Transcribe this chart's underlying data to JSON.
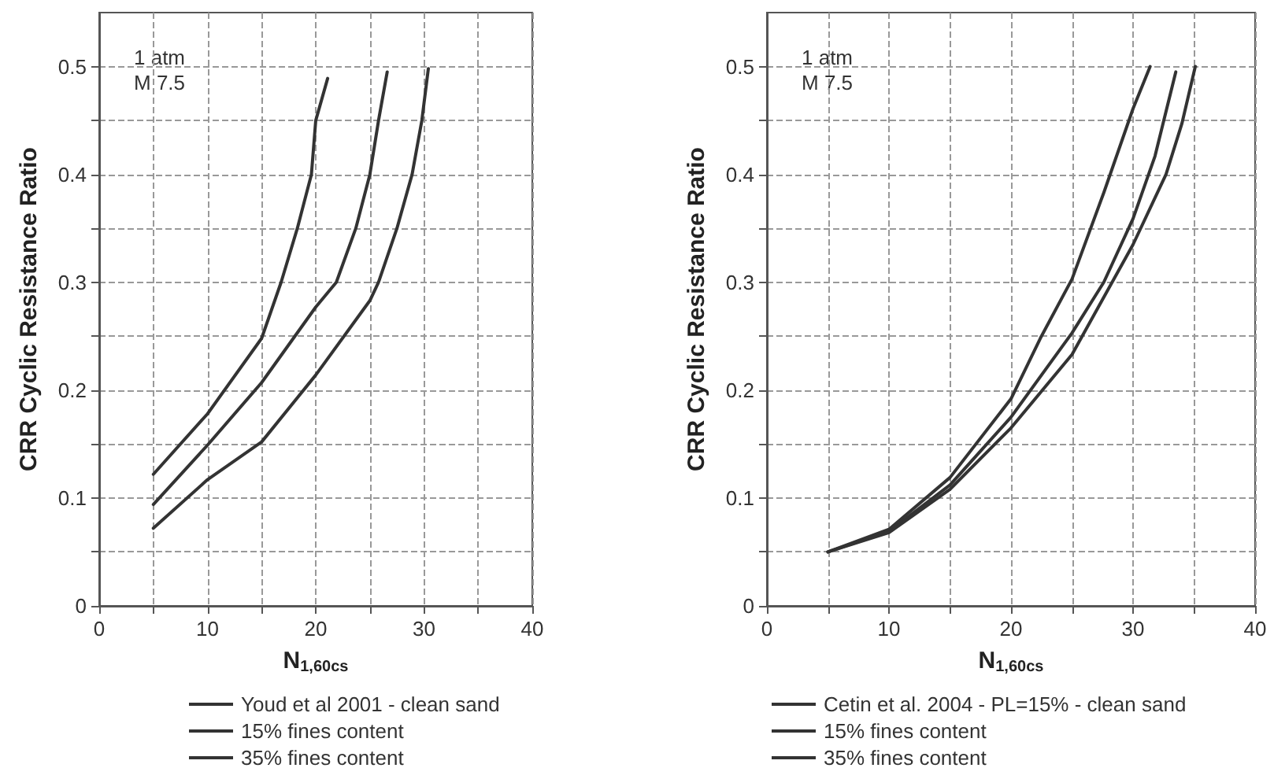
{
  "chart_data": [
    {
      "type": "line",
      "xlabel": "N$_{1,60cs}$",
      "ylabel": "CRR Cyclic Resistance Ratio",
      "annotations": [
        "1 atm",
        "M 7.5"
      ],
      "xlim": [
        0,
        40
      ],
      "ylim": [
        0,
        0.55
      ],
      "xticks": [
        0,
        {
          "value": 5,
          "label": null
        },
        10,
        {
          "value": 15,
          "label": null
        },
        20,
        {
          "value": 25,
          "label": null
        },
        30,
        {
          "value": 35,
          "label": null
        },
        40
      ],
      "yticks": [
        0,
        {
          "value": 0.05,
          "label": null
        },
        0.1,
        {
          "value": 0.15,
          "label": null
        },
        0.2,
        {
          "value": 0.25,
          "label": null
        },
        0.3,
        {
          "value": 0.35,
          "label": null
        },
        0.4,
        {
          "value": 0.45,
          "label": null
        },
        0.5
      ],
      "grid": true,
      "legend": "bottom",
      "line_style": "solid",
      "marker": "none",
      "series": [
        {
          "name": "Youd et al 2001 - clean sand",
          "color": "#333333",
          "x": [
            5,
            10,
            15,
            16.8,
            18.3,
            19.6,
            20,
            21.1
          ],
          "values": [
            0.122,
            0.178,
            0.248,
            0.3,
            0.35,
            0.4,
            0.45,
            0.489
          ]
        },
        {
          "name": "15% fines content",
          "color": "#333333",
          "x": [
            5,
            10,
            15,
            20,
            21.9,
            23.7,
            25,
            25.8,
            26.6
          ],
          "values": [
            0.094,
            0.149,
            0.207,
            0.277,
            0.3,
            0.35,
            0.4,
            0.45,
            0.495
          ]
        },
        {
          "name": "35% fines content",
          "color": "#333333",
          "x": [
            5,
            10,
            15,
            20,
            25,
            25.8,
            27.5,
            28.9,
            29.8,
            30.4
          ],
          "values": [
            0.072,
            0.117,
            0.152,
            0.214,
            0.283,
            0.3,
            0.35,
            0.4,
            0.45,
            0.498
          ]
        }
      ]
    },
    {
      "type": "line",
      "xlabel": "N$_{1,60cs}$",
      "ylabel": "CRR Cyclic Resistance Ratio",
      "annotations": [
        "1 atm",
        "M 7.5"
      ],
      "xlim": [
        0,
        40
      ],
      "ylim": [
        0,
        0.55
      ],
      "xticks": [
        0,
        {
          "value": 5,
          "label": null
        },
        10,
        {
          "value": 15,
          "label": null
        },
        20,
        {
          "value": 25,
          "label": null
        },
        30,
        {
          "value": 35,
          "label": null
        },
        40
      ],
      "yticks": [
        0,
        {
          "value": 0.05,
          "label": null
        },
        0.1,
        {
          "value": 0.15,
          "label": null
        },
        0.2,
        {
          "value": 0.25,
          "label": null
        },
        0.3,
        {
          "value": 0.35,
          "label": null
        },
        0.4,
        {
          "value": 0.45,
          "label": null
        },
        0.5
      ],
      "grid": true,
      "legend": "bottom",
      "line_style": "solid",
      "marker": "none",
      "series": [
        {
          "name": "Cetin et al. 2004 - PL=15% - clean sand",
          "color": "#333333",
          "x": [
            5,
            10,
            15,
            20,
            22.4,
            25,
            27.6,
            30,
            31.4
          ],
          "values": [
            0.05,
            0.071,
            0.119,
            0.192,
            0.248,
            0.303,
            0.383,
            0.461,
            0.5
          ]
        },
        {
          "name": "15% fines content",
          "color": "#333333",
          "x": [
            5,
            10,
            15,
            20,
            25,
            27.6,
            30,
            31.8,
            33.5
          ],
          "values": [
            0.05,
            0.069,
            0.112,
            0.175,
            0.253,
            0.3,
            0.359,
            0.417,
            0.495
          ]
        },
        {
          "name": "35% fines content",
          "color": "#333333",
          "x": [
            5,
            10,
            15,
            20,
            25,
            30,
            32.7,
            34,
            35.1
          ],
          "values": [
            0.05,
            0.068,
            0.108,
            0.165,
            0.233,
            0.335,
            0.4,
            0.447,
            0.5
          ]
        }
      ]
    }
  ]
}
